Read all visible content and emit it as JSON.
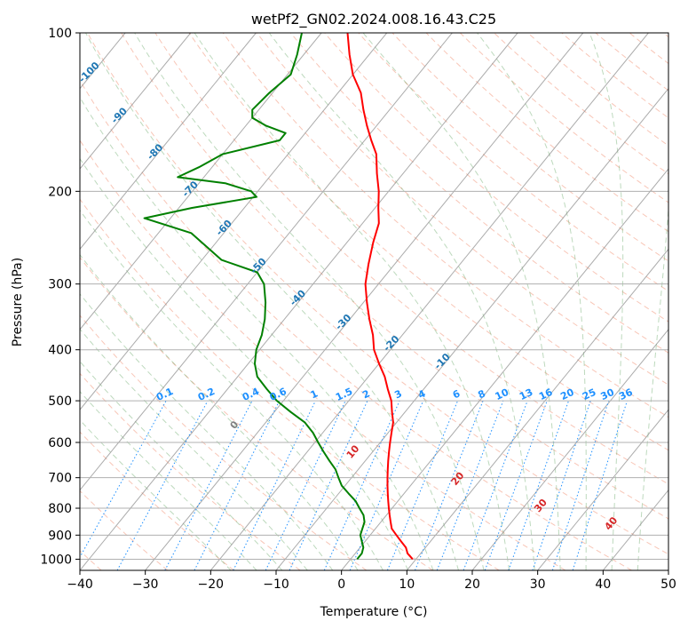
{
  "chart_data": {
    "type": "line",
    "subtype": "skew-T log-p diagram",
    "title": "wetPf2_GN02.2024.008.16.43.C25",
    "xlabel": "Temperature (°C)",
    "ylabel": "Pressure (hPa)",
    "xlim": [
      -40,
      50
    ],
    "ylim": [
      1050,
      100
    ],
    "y_scale": "log",
    "grid": true,
    "x_ticks": [
      -40,
      -30,
      -20,
      -10,
      0,
      10,
      20,
      30,
      40,
      50
    ],
    "y_ticks": [
      1000,
      900,
      800,
      700,
      600,
      500,
      400,
      300,
      200,
      100
    ],
    "y_tick_labels": [
      "1000",
      "900",
      "800",
      "700",
      "600",
      "500",
      "400",
      "300",
      "200",
      "100"
    ],
    "x_tick_labels": [
      "−40",
      "−30",
      "−20",
      "−10",
      "0",
      "10",
      "20",
      "30",
      "40",
      "50"
    ],
    "series": [
      {
        "color": "#ff0000",
        "pressure": [
          1000,
          975,
          950,
          925,
          900,
          875,
          850,
          825,
          800,
          775,
          750,
          725,
          700,
          675,
          650,
          625,
          600,
          575,
          550,
          525,
          500,
          475,
          450,
          425,
          400,
          375,
          350,
          325,
          300,
          275,
          250,
          230,
          215,
          200,
          185,
          170,
          160,
          150,
          140,
          130,
          120,
          110,
          100
        ],
        "temperature": [
          9.5,
          8,
          7,
          5.5,
          4,
          2.5,
          1.5,
          0.5,
          -0.5,
          -1.5,
          -2.5,
          -3.5,
          -4.5,
          -5.5,
          -6.5,
          -7.5,
          -8.5,
          -9.5,
          -10.5,
          -12,
          -13.5,
          -15.5,
          -17.5,
          -20,
          -22.5,
          -24.5,
          -27,
          -29.5,
          -32,
          -34,
          -36,
          -37.5,
          -39.5,
          -41.5,
          -44,
          -46.5,
          -49,
          -51.5,
          -54,
          -56.5,
          -60,
          -63,
          -66
        ]
      },
      {
        "color": "#008000",
        "pressure": [
          1000,
          975,
          950,
          925,
          900,
          875,
          850,
          825,
          800,
          775,
          750,
          725,
          700,
          675,
          650,
          625,
          600,
          575,
          550,
          525,
          500,
          475,
          450,
          425,
          400,
          375,
          350,
          325,
          300,
          285,
          270,
          240,
          225,
          215,
          205,
          200,
          193,
          188,
          180,
          170,
          160,
          155,
          150,
          145,
          140,
          130,
          120,
          110,
          100
        ],
        "temperature": [
          1,
          1,
          0.5,
          -0.5,
          -1.5,
          -2,
          -2.5,
          -3.5,
          -5,
          -6.5,
          -8.5,
          -10.5,
          -12,
          -13.5,
          -15.5,
          -17.5,
          -19.5,
          -21.5,
          -24,
          -27.5,
          -31,
          -34,
          -37,
          -39,
          -40.5,
          -41.5,
          -43,
          -45,
          -47.5,
          -50,
          -57,
          -65,
          -74,
          -68,
          -59.5,
          -61,
          -66,
          -74,
          -72,
          -70,
          -63,
          -63,
          -67,
          -70,
          -71,
          -70.5,
          -69.5,
          -71,
          -73
        ]
      }
    ],
    "isotherm_labels": [
      "-100",
      "-90",
      "-80",
      "-70",
      "-60",
      "-50",
      "-40",
      "-30",
      "-20",
      "-10"
    ],
    "isotherm_values": [
      -100,
      -90,
      -80,
      -70,
      -60,
      -50,
      -40,
      -30,
      -20,
      -10
    ],
    "mixing_ratio_labels": [
      "0.1",
      "0.2",
      "0.4",
      "0.6",
      "1",
      "1.5",
      "2",
      "3",
      "4",
      "6",
      "8",
      "10",
      "13",
      "16",
      "20",
      "25",
      "30",
      "36"
    ],
    "moist_adiabat_labels": [
      "0",
      "10",
      "20",
      "30",
      "40"
    ]
  }
}
